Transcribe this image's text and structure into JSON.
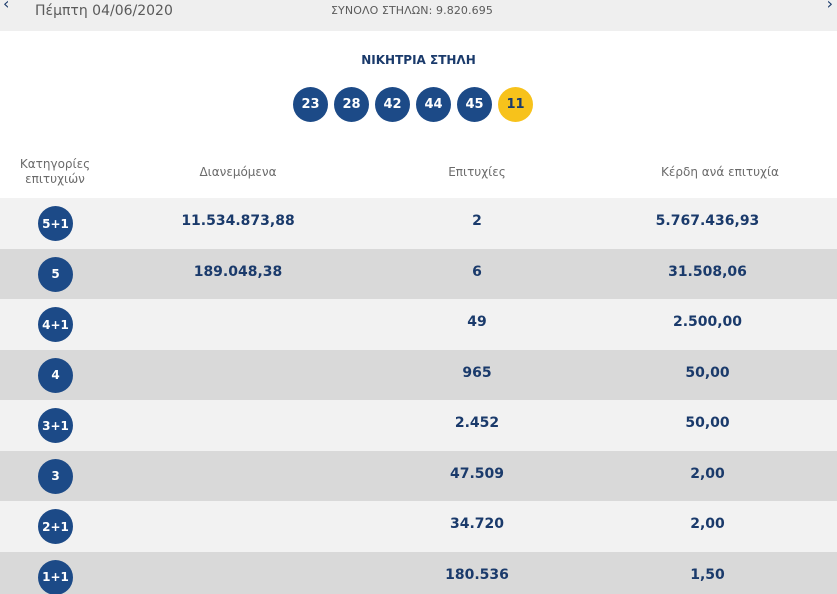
{
  "header": {
    "date": "Πέμπτη 04/06/2020",
    "total_columns": "ΣΥΝΟΛΟ ΣΤΗΛΩΝ: 9.820.695",
    "prev_arrow": "‹",
    "next_arrow": "›"
  },
  "winning": {
    "title": "ΝΙΚΗΤΡΙΑ ΣΤΗΛΗ",
    "numbers": [
      "23",
      "28",
      "42",
      "44",
      "45"
    ],
    "joker": "11"
  },
  "table": {
    "headers": {
      "category": "Κατηγορίες επιτυχιών",
      "distributed": "Διανεμόμενα",
      "wins": "Επιτυχίες",
      "prize": "Κέρδη ανά επιτυχία"
    },
    "rows": [
      {
        "category": "5+1",
        "distributed": "11.534.873,88",
        "wins": "2",
        "prize": "5.767.436,93"
      },
      {
        "category": "5",
        "distributed": "189.048,38",
        "wins": "6",
        "prize": "31.508,06"
      },
      {
        "category": "4+1",
        "distributed": "",
        "wins": "49",
        "prize": "2.500,00"
      },
      {
        "category": "4",
        "distributed": "",
        "wins": "965",
        "prize": "50,00"
      },
      {
        "category": "3+1",
        "distributed": "",
        "wins": "2.452",
        "prize": "50,00"
      },
      {
        "category": "3",
        "distributed": "",
        "wins": "47.509",
        "prize": "2,00"
      },
      {
        "category": "2+1",
        "distributed": "",
        "wins": "34.720",
        "prize": "2,00"
      },
      {
        "category": "1+1",
        "distributed": "",
        "wins": "180.536",
        "prize": "1,50"
      }
    ]
  },
  "colors": {
    "navy": "#1c4a87",
    "joker_yellow": "#f7c21b",
    "row_light": "#f2f2f2",
    "row_dark": "#d9d9d9"
  }
}
